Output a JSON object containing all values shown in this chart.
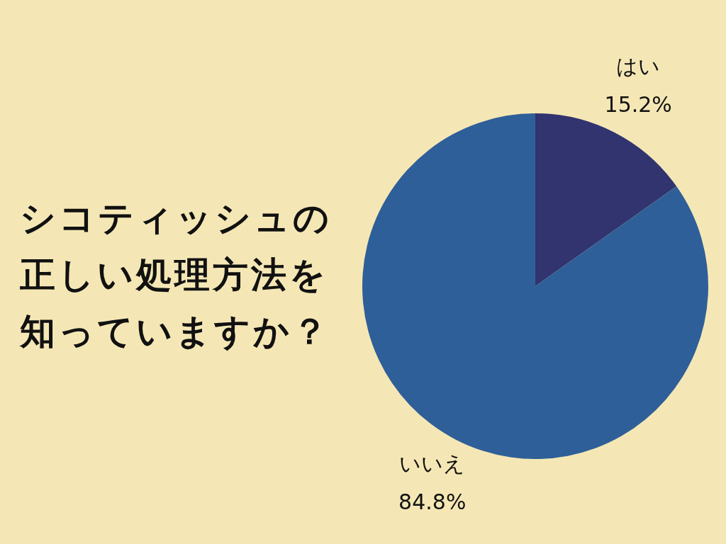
{
  "chart_data": {
    "type": "pie",
    "title": "シコティッシュの正しい処理方法を知っていますか？",
    "categories": [
      "はい",
      "いいえ"
    ],
    "values": [
      15.2,
      84.8
    ],
    "colors": [
      "#31346e",
      "#2f5f98"
    ],
    "value_labels": [
      "15.2%",
      "84.8%"
    ],
    "legend": false
  }
}
